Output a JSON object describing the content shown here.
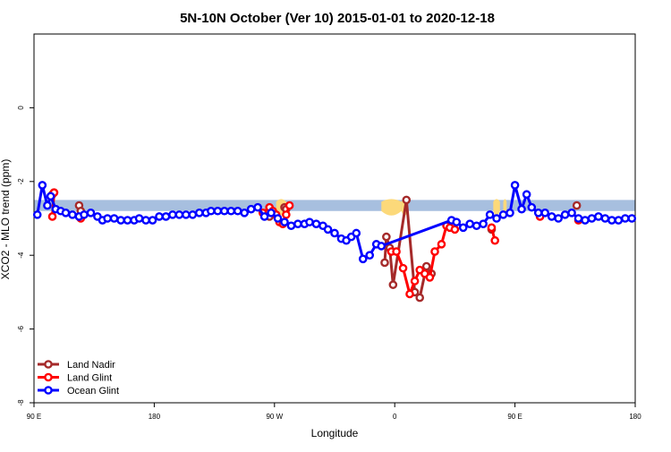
{
  "chart_data": {
    "type": "line",
    "title": "5N-10N October (Ver 10)   2015-01-01 to 2020-12-18",
    "xlabel": "Longitude",
    "ylabel": "XCO2 - MLO trend (ppm)",
    "xlim": [
      -90,
      270
    ],
    "ylim": [
      -8,
      2
    ],
    "x_ticks": [
      {
        "value": -90,
        "label": "90 E"
      },
      {
        "value": -18,
        "label": "180"
      },
      {
        "value": 54,
        "label": "90 W"
      },
      {
        "value": 126,
        "label": "0"
      },
      {
        "value": 198,
        "label": "90 E"
      },
      {
        "value": 270,
        "label": "180"
      }
    ],
    "y_ticks": [
      {
        "value": -8,
        "label": "-8"
      },
      {
        "value": -6,
        "label": "-6"
      },
      {
        "value": -4,
        "label": "-4"
      },
      {
        "value": -2,
        "label": "-2"
      },
      {
        "value": 0,
        "label": "0"
      }
    ],
    "grid": false,
    "legend_position": "bottom-left",
    "surface_band": {
      "y_range": [
        -2.8,
        -2.5
      ],
      "ocean_color": "#a7bfdf",
      "land_color": "#fcd97a",
      "land_segments": [
        [
          55,
          61
        ],
        [
          118,
          130
        ],
        [
          130,
          134
        ],
        [
          185,
          189
        ],
        [
          191,
          193
        ]
      ]
    },
    "series": [
      {
        "name": "Land Nadir",
        "color": "#a52a2a",
        "segments": [
          [
            [
              -78,
              -2.3
            ],
            [
              -79,
              -2.35
            ]
          ],
          [
            [
              -63,
              -2.65
            ],
            [
              -62,
              -2.8
            ]
          ],
          [
            [
              50,
              -2.85
            ],
            [
              51,
              -2.95
            ]
          ],
          [
            [
              60,
              -2.7
            ],
            [
              61,
              -2.75
            ]
          ],
          [
            [
              120,
              -4.2
            ],
            [
              121,
              -3.5
            ],
            [
              123,
              -3.8
            ],
            [
              125,
              -4.8
            ],
            [
              133,
              -2.5
            ],
            [
              138,
              -5.0
            ],
            [
              141,
              -5.15
            ],
            [
              145,
              -4.3
            ],
            [
              148,
              -4.5
            ]
          ],
          [
            [
              184,
              -3.3
            ]
          ],
          [
            [
              235,
              -2.65
            ]
          ]
        ]
      },
      {
        "name": "Land Glint",
        "color": "#ff0000",
        "segments": [
          [
            [
              -79,
              -2.95
            ],
            [
              -78,
              -2.3
            ]
          ],
          [
            [
              -62,
              -3.0
            ]
          ],
          [
            [
              47,
              -2.85
            ],
            [
              51,
              -2.7
            ],
            [
              53,
              -2.8
            ],
            [
              55,
              -2.9
            ],
            [
              57,
              -3.1
            ],
            [
              59,
              -3.15
            ],
            [
              61,
              -2.9
            ],
            [
              63,
              -2.65
            ]
          ],
          [
            [
              124,
              -3.9
            ],
            [
              127,
              -3.9
            ],
            [
              131,
              -4.35
            ],
            [
              135,
              -5.05
            ],
            [
              138,
              -4.7
            ],
            [
              141,
              -4.4
            ],
            [
              144,
              -4.5
            ],
            [
              147,
              -4.6
            ],
            [
              150,
              -3.9
            ],
            [
              154,
              -3.7
            ],
            [
              157,
              -3.2
            ],
            [
              159,
              -3.25
            ],
            [
              162,
              -3.3
            ]
          ],
          [
            [
              184,
              -3.25
            ],
            [
              186,
              -3.6
            ]
          ],
          [
            [
              213,
              -2.95
            ]
          ],
          [
            [
              236,
              -3.05
            ]
          ]
        ]
      },
      {
        "name": "Ocean Glint",
        "color": "#0000ff",
        "points": [
          [
            -88,
            -2.9
          ],
          [
            -85,
            -2.1
          ],
          [
            -82,
            -2.65
          ],
          [
            -80,
            -2.4
          ],
          [
            -77,
            -2.75
          ],
          [
            -74,
            -2.8
          ],
          [
            -71,
            -2.85
          ],
          [
            -67,
            -2.9
          ],
          [
            -63,
            -2.95
          ],
          [
            -60,
            -2.9
          ],
          [
            -56,
            -2.85
          ],
          [
            -52,
            -2.95
          ],
          [
            -49,
            -3.05
          ],
          [
            -46,
            -3.0
          ],
          [
            -42,
            -3.0
          ],
          [
            -38,
            -3.05
          ],
          [
            -34,
            -3.05
          ],
          [
            -30,
            -3.05
          ],
          [
            -27,
            -3.0
          ],
          [
            -23,
            -3.05
          ],
          [
            -19,
            -3.05
          ],
          [
            -15,
            -2.95
          ],
          [
            -11,
            -2.95
          ],
          [
            -7,
            -2.9
          ],
          [
            -3,
            -2.9
          ],
          [
            1,
            -2.9
          ],
          [
            5,
            -2.9
          ],
          [
            9,
            -2.85
          ],
          [
            13,
            -2.85
          ],
          [
            16,
            -2.8
          ],
          [
            20,
            -2.8
          ],
          [
            24,
            -2.8
          ],
          [
            28,
            -2.8
          ],
          [
            32,
            -2.8
          ],
          [
            36,
            -2.85
          ],
          [
            40,
            -2.75
          ],
          [
            44,
            -2.7
          ],
          [
            48,
            -2.95
          ],
          [
            52,
            -2.85
          ],
          [
            56,
            -3.0
          ],
          [
            60,
            -3.1
          ],
          [
            64,
            -3.2
          ],
          [
            68,
            -3.15
          ],
          [
            72,
            -3.15
          ],
          [
            75,
            -3.1
          ],
          [
            79,
            -3.15
          ],
          [
            83,
            -3.2
          ],
          [
            86,
            -3.3
          ],
          [
            90,
            -3.4
          ],
          [
            94,
            -3.55
          ],
          [
            97,
            -3.6
          ],
          [
            100,
            -3.5
          ],
          [
            103,
            -3.4
          ],
          [
            107,
            -4.1
          ],
          [
            111,
            -4.0
          ],
          [
            115,
            -3.7
          ],
          [
            118,
            -3.75
          ],
          [
            160,
            -3.05
          ],
          [
            163,
            -3.1
          ],
          [
            167,
            -3.25
          ],
          [
            171,
            -3.15
          ],
          [
            175,
            -3.2
          ],
          [
            179,
            -3.15
          ],
          [
            183,
            -2.9
          ],
          [
            187,
            -3.0
          ],
          [
            191,
            -2.9
          ],
          [
            195,
            -2.85
          ],
          [
            198,
            -2.1
          ],
          [
            202,
            -2.75
          ],
          [
            205,
            -2.35
          ],
          [
            208,
            -2.7
          ],
          [
            212,
            -2.85
          ],
          [
            216,
            -2.85
          ],
          [
            220,
            -2.95
          ],
          [
            224,
            -3.0
          ],
          [
            228,
            -2.9
          ],
          [
            232,
            -2.85
          ],
          [
            236,
            -3.0
          ],
          [
            240,
            -3.05
          ],
          [
            244,
            -3.0
          ],
          [
            248,
            -2.95
          ],
          [
            252,
            -3.0
          ],
          [
            256,
            -3.05
          ],
          [
            260,
            -3.05
          ],
          [
            264,
            -3.0
          ],
          [
            268,
            -3.0
          ]
        ]
      }
    ]
  }
}
